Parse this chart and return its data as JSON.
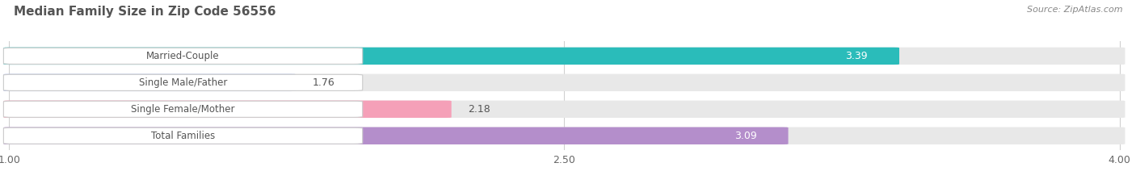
{
  "title": "Median Family Size in Zip Code 56556",
  "source": "Source: ZipAtlas.com",
  "categories": [
    "Married-Couple",
    "Single Male/Father",
    "Single Female/Mother",
    "Total Families"
  ],
  "values": [
    3.39,
    1.76,
    2.18,
    3.09
  ],
  "bar_colors": [
    "#2abcba",
    "#aab8ea",
    "#f5a0b8",
    "#b48ecb"
  ],
  "value_colors": [
    "#ffffff",
    "#555555",
    "#555555",
    "#ffffff"
  ],
  "xmin": 1.0,
  "xmax": 4.0,
  "xticks": [
    1.0,
    2.5,
    4.0
  ],
  "bar_height": 0.62,
  "figsize": [
    14.06,
    2.33
  ],
  "dpi": 100,
  "bg_color": "#ffffff",
  "track_color": "#e8e8e8",
  "grid_color": "#d0d0d0",
  "title_color": "#555555",
  "source_color": "#888888",
  "label_color": "#555555"
}
